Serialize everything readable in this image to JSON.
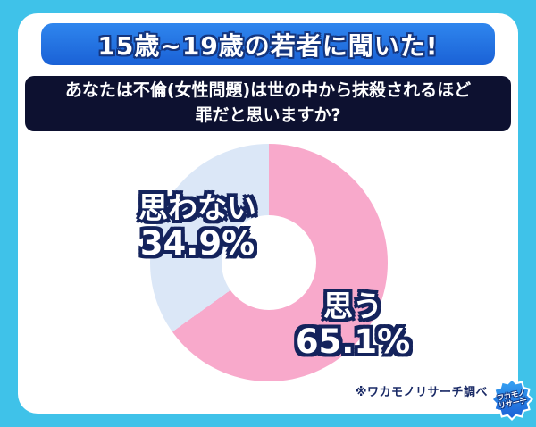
{
  "page": {
    "background_color": "#3fc2e9",
    "card_color": "#ffffff"
  },
  "header": {
    "title": "15歳~19歳の若者に聞いた!",
    "banner_color_top": "#2f86ee",
    "banner_color_bottom": "#1a61d6"
  },
  "question": {
    "line1": "あなたは不倫(女性問題)は世の中から抹殺されるほど",
    "line2": "罪だと思いますか?",
    "bg_color": "#0d1130"
  },
  "chart_data": {
    "type": "pie",
    "title": "あなたは不倫(女性問題)は世の中から抹殺されるほど罪だと思いますか?",
    "categories": [
      "思う",
      "思わない"
    ],
    "values": [
      65.1,
      34.9
    ],
    "value_labels": [
      "65.1%",
      "34.9%"
    ],
    "colors": [
      "#f8a9cb",
      "#dbe7f7"
    ],
    "donut_hole_color": "#ffffff",
    "start_angle": "top",
    "direction": "clockwise",
    "label_outline_color": "#14235c"
  },
  "footer": {
    "source_note": "※ワカモノリサーチ調べ",
    "logo": {
      "line1": "ワカモノ",
      "line2": "リサーチ"
    }
  }
}
